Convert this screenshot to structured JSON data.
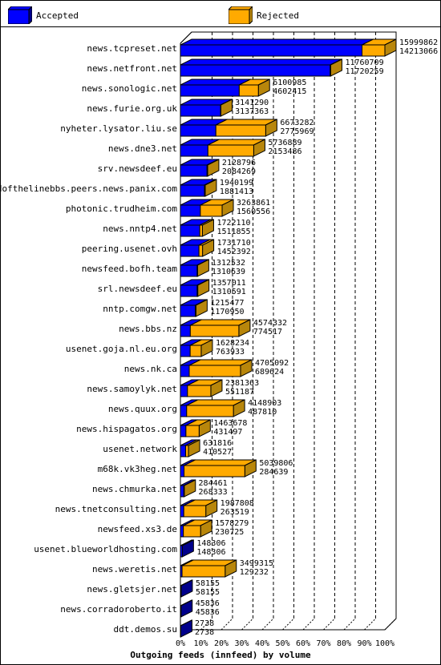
{
  "legend": {
    "accepted_label": "Accepted",
    "rejected_label": "Rejected"
  },
  "colors": {
    "accepted": "#0000ff",
    "rejected": "#ffaa00",
    "accepted_side": "#00008b",
    "rejected_side": "#b8860b"
  },
  "chart_data": {
    "type": "bar",
    "orientation": "horizontal",
    "stacked": true,
    "three_d": true,
    "title": "Outgoing feeds (innfeed) by volume",
    "xlim": [
      0,
      100
    ],
    "x_ticks": [
      "0%",
      "10%",
      "20%",
      "30%",
      "40%",
      "50%",
      "60%",
      "70%",
      "80%",
      "90%",
      "100%"
    ],
    "grid": "vertical dashed",
    "legend_position": "top",
    "series_names": [
      "Accepted",
      "Rejected"
    ],
    "rows": [
      {
        "name": "news.tcpreset.net",
        "total": "15999862",
        "accepted": "14213066",
        "total_v": 15999862,
        "accepted_v": 14213066
      },
      {
        "name": "news.netfront.net",
        "total": "11760709",
        "accepted": "11720259",
        "total_v": 11760709,
        "accepted_v": 11720259
      },
      {
        "name": "news.sonologic.net",
        "total": "6100985",
        "accepted": "4602415",
        "total_v": 6100985,
        "accepted_v": 4602415
      },
      {
        "name": "news.furie.org.uk",
        "total": "3141290",
        "accepted": "3137363",
        "total_v": 3141290,
        "accepted_v": 3137363
      },
      {
        "name": "nyheter.lysator.liu.se",
        "total": "6673282",
        "accepted": "2775969",
        "total_v": 6673282,
        "accepted_v": 2775969
      },
      {
        "name": "news.dne3.net",
        "total": "5736889",
        "accepted": "2153486",
        "total_v": 5736889,
        "accepted_v": 2153486
      },
      {
        "name": "srv.newsdeef.eu",
        "total": "2128796",
        "accepted": "2084269",
        "total_v": 2128796,
        "accepted_v": 2084269
      },
      {
        "name": "endofthelinebbs.peers.news.panix.com",
        "total": "1940199",
        "accepted": "1881413",
        "total_v": 1940199,
        "accepted_v": 1881413
      },
      {
        "name": "photonic.trudheim.com",
        "total": "3263861",
        "accepted": "1560556",
        "total_v": 3263861,
        "accepted_v": 1560556
      },
      {
        "name": "news.nntp4.net",
        "total": "1722110",
        "accepted": "1511855",
        "total_v": 1722110,
        "accepted_v": 1511855
      },
      {
        "name": "peering.usenet.ovh",
        "total": "1731710",
        "accepted": "1452392",
        "total_v": 1731710,
        "accepted_v": 1452392
      },
      {
        "name": "newsfeed.bofh.team",
        "total": "1312532",
        "accepted": "1310639",
        "total_v": 1312532,
        "accepted_v": 1310639
      },
      {
        "name": "srl.newsdeef.eu",
        "total": "1357011",
        "accepted": "1310591",
        "total_v": 1357011,
        "accepted_v": 1310591
      },
      {
        "name": "nntp.comgw.net",
        "total": "1215477",
        "accepted": "1170950",
        "total_v": 1215477,
        "accepted_v": 1170950
      },
      {
        "name": "news.bbs.nz",
        "total": "4574332",
        "accepted": "774517",
        "total_v": 4574332,
        "accepted_v": 774517
      },
      {
        "name": "usenet.goja.nl.eu.org",
        "total": "1628234",
        "accepted": "763933",
        "total_v": 1628234,
        "accepted_v": 763933
      },
      {
        "name": "news.nk.ca",
        "total": "4705092",
        "accepted": "689624",
        "total_v": 4705092,
        "accepted_v": 689624
      },
      {
        "name": "news.samoylyk.net",
        "total": "2381363",
        "accepted": "551187",
        "total_v": 2381363,
        "accepted_v": 551187
      },
      {
        "name": "news.quux.org",
        "total": "4148903",
        "accepted": "487810",
        "total_v": 4148903,
        "accepted_v": 487810
      },
      {
        "name": "news.hispagatos.org",
        "total": "1463678",
        "accepted": "431497",
        "total_v": 1463678,
        "accepted_v": 431497
      },
      {
        "name": "usenet.network",
        "total": "631816",
        "accepted": "410527",
        "total_v": 631816,
        "accepted_v": 410527
      },
      {
        "name": "m68k.vk3heg.net",
        "total": "5039806",
        "accepted": "284639",
        "total_v": 5039806,
        "accepted_v": 284639
      },
      {
        "name": "news.chmurka.net",
        "total": "284461",
        "accepted": "268333",
        "total_v": 284461,
        "accepted_v": 268333
      },
      {
        "name": "news.tnetconsulting.net",
        "total": "1987808",
        "accepted": "263519",
        "total_v": 1987808,
        "accepted_v": 263519
      },
      {
        "name": "newsfeed.xs3.de",
        "total": "1578279",
        "accepted": "230725",
        "total_v": 1578279,
        "accepted_v": 230725
      },
      {
        "name": "usenet.blueworldhosting.com",
        "total": "148306",
        "accepted": "148306",
        "total_v": 148306,
        "accepted_v": 148306
      },
      {
        "name": "news.weretis.net",
        "total": "3499315",
        "accepted": "129232",
        "total_v": 3499315,
        "accepted_v": 129232
      },
      {
        "name": "news.gletsjer.net",
        "total": "58155",
        "accepted": "58155",
        "total_v": 58155,
        "accepted_v": 58155
      },
      {
        "name": "news.corradoroberto.it",
        "total": "45836",
        "accepted": "45836",
        "total_v": 45836,
        "accepted_v": 45836
      },
      {
        "name": "ddt.demos.su",
        "total": "2738",
        "accepted": "2738",
        "total_v": 2738,
        "accepted_v": 2738
      }
    ]
  }
}
